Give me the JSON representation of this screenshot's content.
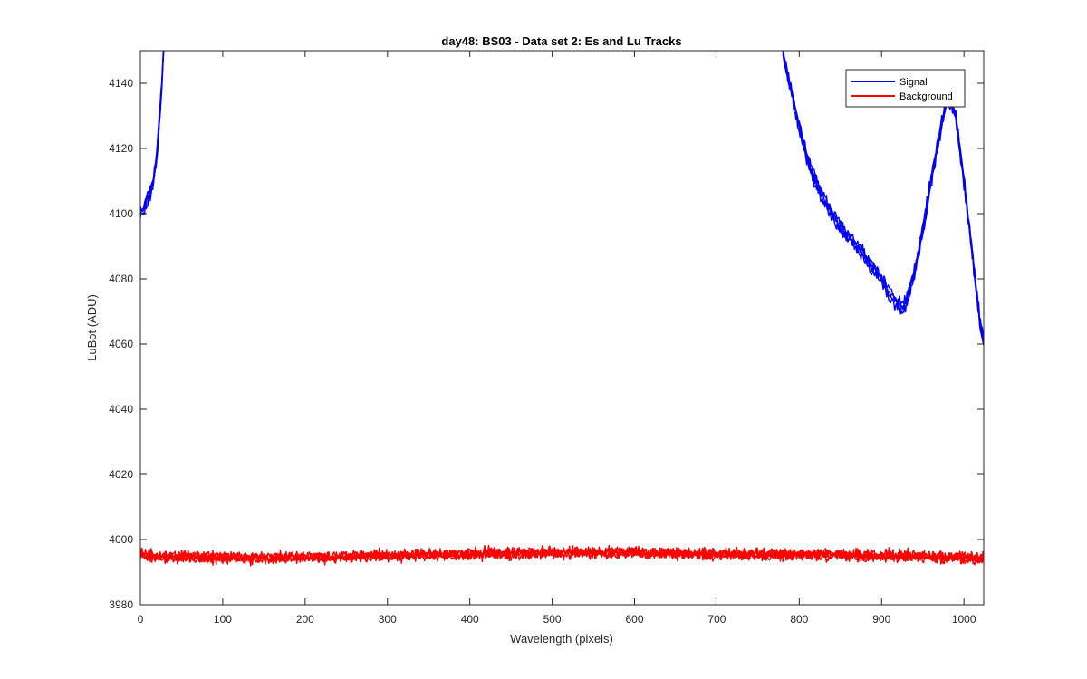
{
  "chart_data": {
    "type": "line",
    "title": "day48: BS03 - Data set 2: Es and Lu Tracks",
    "xlabel": "Wavelength (pixels)",
    "ylabel": "LuBot (ADU)",
    "xlim": [
      0,
      1024
    ],
    "ylim": [
      3980,
      4150
    ],
    "xticks": [
      0,
      100,
      200,
      300,
      400,
      500,
      600,
      700,
      800,
      900,
      1000
    ],
    "yticks": [
      3980,
      4000,
      4020,
      4040,
      4060,
      4080,
      4100,
      4120,
      4140
    ],
    "grid": false,
    "legend_position": "top-right",
    "legend": [
      "Signal",
      "Background"
    ],
    "series": [
      {
        "name": "Signal",
        "color": "#0000ff",
        "traces": 4,
        "x": [
          0,
          5,
          10,
          15,
          20,
          25,
          30,
          780,
          790,
          800,
          810,
          820,
          830,
          840,
          850,
          860,
          870,
          880,
          890,
          900,
          910,
          920,
          925,
          930,
          940,
          950,
          960,
          970,
          980,
          990,
          1000,
          1010,
          1020,
          1024
        ],
        "y": [
          4100,
          4102,
          4105,
          4109,
          4118,
          4135,
          4160,
          4150,
          4138,
          4126,
          4117,
          4110,
          4104,
          4100,
          4096,
          4093,
          4090,
          4087,
          4083,
          4080,
          4075,
          4072,
          4071,
          4073,
          4082,
          4095,
          4110,
          4124,
          4136,
          4130,
          4110,
          4088,
          4066,
          4060
        ]
      },
      {
        "name": "Background",
        "color": "#ff0000",
        "traces": 4,
        "x": [
          0,
          100,
          200,
          300,
          400,
          500,
          600,
          700,
          800,
          900,
          1000,
          1024
        ],
        "y": [
          3995,
          3994.5,
          3994.5,
          3995,
          3995.5,
          3996,
          3996,
          3995.5,
          3995.5,
          3995,
          3994.5,
          3994
        ]
      }
    ]
  }
}
